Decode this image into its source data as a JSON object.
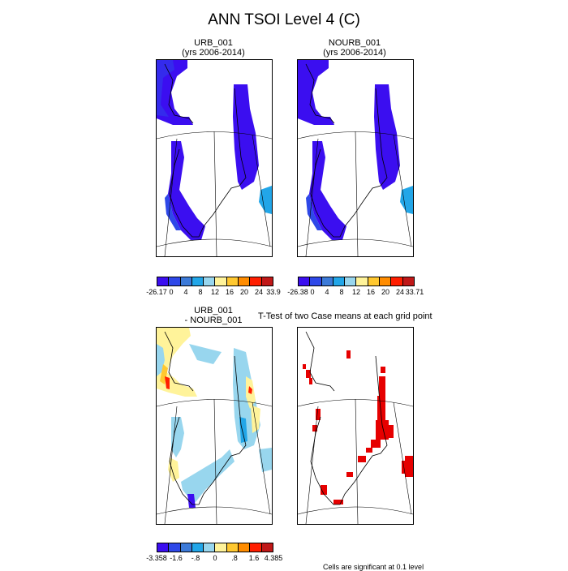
{
  "title": "ANN TSOI Level 4 (C)",
  "panels": {
    "urb": {
      "title_line1": "URB_001",
      "title_line2": "(yrs 2006-2014)"
    },
    "nourb": {
      "title_line1": "NOURB_001",
      "title_line2": "(yrs 2006-2014)"
    },
    "diff": {
      "title_line1": "URB_001",
      "title_line2": "- NOURB_001"
    },
    "ttest": {
      "title": "T-Test of two Case means at each grid point",
      "footer": "Cells are significant at 0.1 level"
    }
  },
  "colorbars": {
    "urb": {
      "colors": [
        "#3b0ef0",
        "#2e48e8",
        "#3c7ad8",
        "#22a6e8",
        "#98d6ee",
        "#fff39a",
        "#ffc830",
        "#ff8c00",
        "#ff1e00",
        "#c01818"
      ],
      "labels": [
        "-26.17",
        "0",
        "4",
        "8",
        "12",
        "16",
        "20",
        "24",
        "33.9"
      ]
    },
    "nourb": {
      "colors": [
        "#3b0ef0",
        "#2e48e8",
        "#3c7ad8",
        "#22a6e8",
        "#98d6ee",
        "#fff39a",
        "#ffc830",
        "#ff8c00",
        "#ff1e00",
        "#c01818"
      ],
      "labels": [
        "-26.38",
        "0",
        "4",
        "8",
        "12",
        "16",
        "20",
        "24",
        "33.71"
      ]
    },
    "diff": {
      "colors": [
        "#3b0ef0",
        "#2e48e8",
        "#3c7ad8",
        "#22a6e8",
        "#98d6ee",
        "#fff39a",
        "#ffc830",
        "#ff8c00",
        "#ff1e00",
        "#c01818"
      ],
      "labels": [
        "-3.358",
        "-1.6",
        "-.8",
        "0",
        ".8",
        "1.6",
        "4.385"
      ]
    },
    "ttest_fill": "#e60000"
  }
}
